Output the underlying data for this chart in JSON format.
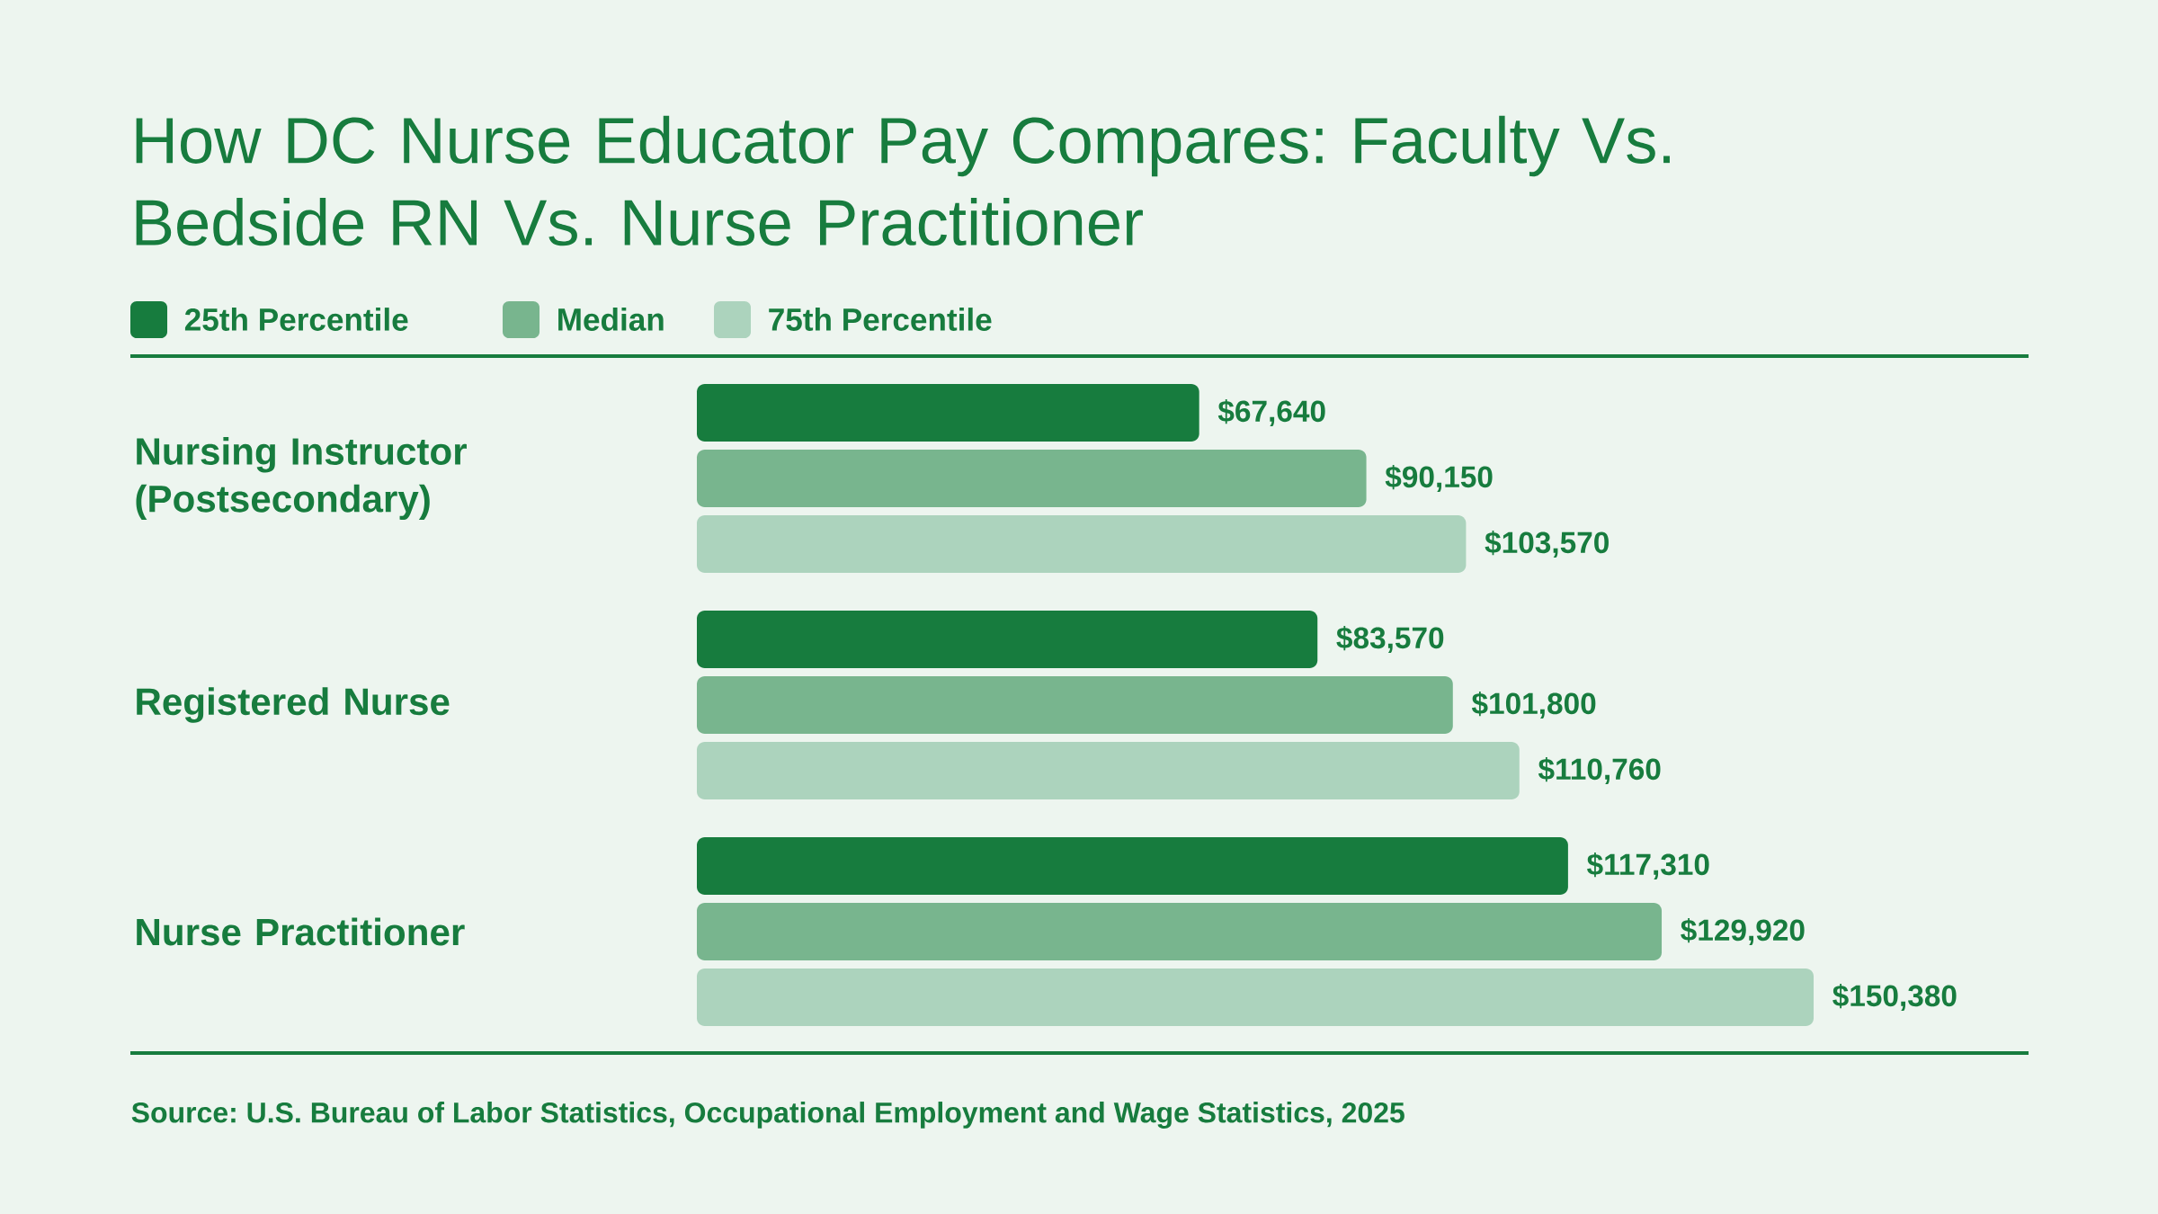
{
  "chart_data": {
    "type": "bar",
    "orientation": "horizontal",
    "title": "How DC Nurse Educator Pay Compares: Faculty Vs. Bedside RN Vs. Nurse Practitioner",
    "categories": [
      "Nursing Instructor (Postsecondary)",
      "Registered Nurse",
      "Nurse Practitioner"
    ],
    "series": [
      {
        "name": "25th Percentile",
        "color": "#177c3e",
        "values": [
          67640,
          83570,
          117310
        ],
        "value_labels": [
          "$67,640",
          "$83,570",
          "$117,310"
        ]
      },
      {
        "name": "Median",
        "color": "#78b58e",
        "values": [
          90150,
          101800,
          129920
        ],
        "value_labels": [
          "$90,150",
          "$101,800",
          "$129,920"
        ]
      },
      {
        "name": "75th Percentile",
        "color": "#acd3bd",
        "values": [
          103570,
          110760,
          150380
        ],
        "value_labels": [
          "$103,570",
          "$110,760",
          "$150,380"
        ]
      }
    ],
    "legend": "top left",
    "tick_labels": "y",
    "annotations": [
      "Source: U.S. Bureau of Labor Statistics, Occupational Employment and Wage Statistics, 2025"
    ]
  }
}
